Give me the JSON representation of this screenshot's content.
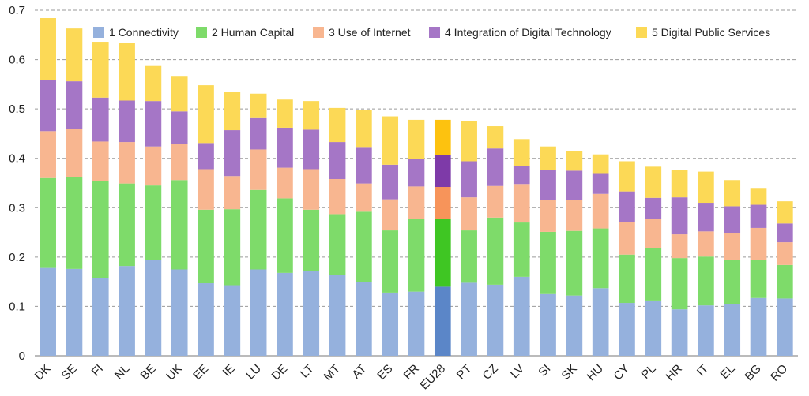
{
  "chart_data": {
    "type": "bar",
    "stacked": true,
    "title": "",
    "xlabel": "",
    "ylabel": "",
    "ylim": [
      0,
      0.7
    ],
    "yticks": [
      "0",
      "0.1",
      "0.2",
      "0.3",
      "0.4",
      "0.5",
      "0.6",
      "0.7"
    ],
    "grid": "horizontal dashed",
    "legend_position": "top",
    "highlight_category": "EU28",
    "categories": [
      "DK",
      "SE",
      "FI",
      "NL",
      "BE",
      "UK",
      "EE",
      "IE",
      "LU",
      "DE",
      "LT",
      "MT",
      "AT",
      "ES",
      "FR",
      "EU28",
      "PT",
      "CZ",
      "LV",
      "SI",
      "SK",
      "HU",
      "CY",
      "PL",
      "HR",
      "IT",
      "EL",
      "BG",
      "RO"
    ],
    "series": [
      {
        "name": "1 Connectivity",
        "color": "#95b1dd",
        "highlight_color": "#5b86c8",
        "values": [
          0.178,
          0.176,
          0.158,
          0.182,
          0.194,
          0.175,
          0.147,
          0.143,
          0.175,
          0.168,
          0.172,
          0.164,
          0.15,
          0.128,
          0.13,
          0.14,
          0.148,
          0.144,
          0.16,
          0.125,
          0.122,
          0.137,
          0.107,
          0.112,
          0.094,
          0.102,
          0.105,
          0.117,
          0.116
        ]
      },
      {
        "name": "2 Human Capital",
        "color": "#7edb6a",
        "highlight_color": "#3fc623",
        "values": [
          0.182,
          0.186,
          0.196,
          0.167,
          0.151,
          0.181,
          0.149,
          0.154,
          0.161,
          0.151,
          0.124,
          0.123,
          0.142,
          0.126,
          0.147,
          0.137,
          0.106,
          0.136,
          0.11,
          0.126,
          0.131,
          0.121,
          0.098,
          0.106,
          0.104,
          0.099,
          0.09,
          0.078,
          0.068
        ]
      },
      {
        "name": "3 Use of Internet",
        "color": "#f8b690",
        "highlight_color": "#f7945a",
        "values": [
          0.095,
          0.097,
          0.08,
          0.084,
          0.079,
          0.073,
          0.082,
          0.067,
          0.082,
          0.062,
          0.082,
          0.071,
          0.057,
          0.063,
          0.066,
          0.065,
          0.067,
          0.064,
          0.078,
          0.065,
          0.062,
          0.07,
          0.066,
          0.06,
          0.048,
          0.051,
          0.054,
          0.064,
          0.046
        ]
      },
      {
        "name": "4 Integration of Digital Technology",
        "color": "#a576c6",
        "highlight_color": "#7e3aa8",
        "values": [
          0.104,
          0.097,
          0.089,
          0.084,
          0.092,
          0.066,
          0.053,
          0.093,
          0.065,
          0.081,
          0.08,
          0.075,
          0.074,
          0.07,
          0.055,
          0.065,
          0.073,
          0.076,
          0.037,
          0.06,
          0.06,
          0.042,
          0.062,
          0.042,
          0.075,
          0.058,
          0.054,
          0.047,
          0.038
        ]
      },
      {
        "name": "5 Digital Public Services",
        "color": "#fcd956",
        "highlight_color": "#fdc20f",
        "values": [
          0.125,
          0.107,
          0.113,
          0.117,
          0.071,
          0.072,
          0.117,
          0.077,
          0.048,
          0.057,
          0.058,
          0.069,
          0.075,
          0.098,
          0.08,
          0.071,
          0.082,
          0.045,
          0.054,
          0.048,
          0.04,
          0.038,
          0.061,
          0.063,
          0.056,
          0.063,
          0.053,
          0.034,
          0.045
        ]
      }
    ]
  }
}
